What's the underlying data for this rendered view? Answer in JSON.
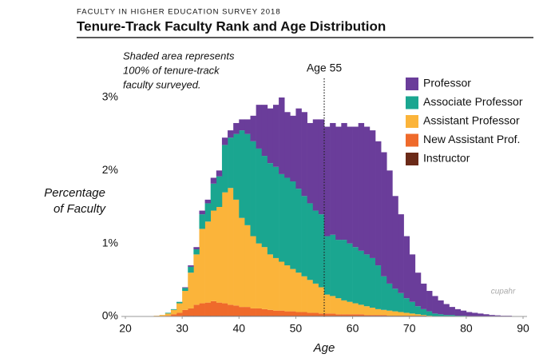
{
  "chart_data": {
    "type": "histogram",
    "header": "FACULTY IN HIGHER EDUCATION SURVEY 2018",
    "title": "Tenure-Track Faculty Rank and Age Distribution",
    "annotation": [
      "Shaded area represents",
      "100% of tenure-track",
      "faculty surveyed."
    ],
    "y_label": [
      "Percentage",
      "of Faculty"
    ],
    "x_label": "Age",
    "logo": "cupahr",
    "reference_line": {
      "x": 55,
      "label": "Age 55"
    },
    "stacked": true,
    "bins": [
      25,
      26,
      27,
      28,
      29,
      30,
      31,
      32,
      33,
      34,
      35,
      36,
      37,
      38,
      39,
      40,
      41,
      42,
      43,
      44,
      45,
      46,
      47,
      48,
      49,
      50,
      51,
      52,
      53,
      54,
      55,
      56,
      57,
      58,
      59,
      60,
      61,
      62,
      63,
      64,
      65,
      66,
      67,
      68,
      69,
      70,
      71,
      72,
      73,
      74,
      75,
      76,
      77,
      78,
      79,
      80,
      81,
      82,
      83,
      84,
      85,
      86,
      87,
      88,
      89,
      90
    ],
    "series": [
      {
        "name": "Professor",
        "color": "#6a3d9a",
        "values": [
          0,
          0,
          0,
          0,
          0,
          0.01,
          0.02,
          0.03,
          0.05,
          0.05,
          0.08,
          0.08,
          0.1,
          0.1,
          0.15,
          0.15,
          0.2,
          0.35,
          0.6,
          0.7,
          0.75,
          0.85,
          1.05,
          0.9,
          0.9,
          1.1,
          1.15,
          1.1,
          1.25,
          1.3,
          1.5,
          1.53,
          1.55,
          1.6,
          1.6,
          1.65,
          1.75,
          1.75,
          1.75,
          1.7,
          1.7,
          1.55,
          1.27,
          1.08,
          0.85,
          0.65,
          0.46,
          0.35,
          0.28,
          0.24,
          0.19,
          0.15,
          0.11,
          0.09,
          0.07,
          0.06,
          0.05,
          0.04,
          0.03,
          0.02,
          0.015,
          0.01,
          0.01,
          0.005,
          0.005
        ]
      },
      {
        "name": "Associate Professor",
        "color": "#1aa690",
        "values": [
          0,
          0,
          0.01,
          0.01,
          0.02,
          0.04,
          0.08,
          0.07,
          0.2,
          0.25,
          0.37,
          0.42,
          0.65,
          0.69,
          0.9,
          1.2,
          1.25,
          1.3,
          1.3,
          1.25,
          1.25,
          1.25,
          1.2,
          1.2,
          1.2,
          1.15,
          1.1,
          1.05,
          1.0,
          1.0,
          0.8,
          0.84,
          0.8,
          0.83,
          0.8,
          0.77,
          0.74,
          0.71,
          0.68,
          0.6,
          0.46,
          0.37,
          0.31,
          0.26,
          0.2,
          0.16,
          0.11,
          0.08,
          0.06,
          0.04,
          0.03,
          0.02,
          0.02,
          0.01,
          0.01,
          0,
          0,
          0,
          0,
          0,
          0,
          0,
          0,
          0,
          0
        ]
      },
      {
        "name": "Assistant Professor",
        "color": "#fbb43a",
        "values": [
          0.01,
          0.02,
          0.03,
          0.06,
          0.13,
          0.26,
          0.49,
          0.69,
          1.02,
          1.11,
          1.24,
          1.31,
          1.52,
          1.6,
          1.45,
          1.22,
          1.12,
          0.99,
          0.89,
          0.85,
          0.76,
          0.72,
          0.67,
          0.63,
          0.58,
          0.54,
          0.49,
          0.45,
          0.4,
          0.36,
          0.26,
          0.24,
          0.22,
          0.19,
          0.17,
          0.15,
          0.13,
          0.12,
          0.1,
          0.08,
          0.07,
          0.07,
          0.06,
          0.05,
          0.04,
          0.03,
          0.02,
          0.01,
          0.01,
          0,
          0,
          0,
          0,
          0,
          0,
          0,
          0,
          0,
          0,
          0,
          0,
          0,
          0,
          0,
          0
        ]
      },
      {
        "name": "New Assistant Prof.",
        "color": "#ef6a2b",
        "values": [
          0,
          0,
          0.01,
          0.03,
          0.05,
          0.08,
          0.1,
          0.15,
          0.17,
          0.18,
          0.2,
          0.18,
          0.17,
          0.15,
          0.14,
          0.12,
          0.12,
          0.1,
          0.1,
          0.09,
          0.08,
          0.07,
          0.07,
          0.06,
          0.06,
          0.05,
          0.05,
          0.04,
          0.04,
          0.03,
          0.03,
          0.03,
          0.02,
          0.02,
          0.02,
          0.02,
          0.02,
          0.01,
          0.01,
          0.01,
          0.01,
          0,
          0,
          0,
          0,
          0,
          0,
          0,
          0,
          0,
          0,
          0,
          0,
          0,
          0,
          0,
          0,
          0,
          0,
          0,
          0,
          0,
          0,
          0,
          0
        ]
      },
      {
        "name": "Instructor",
        "color": "#6b2a18",
        "values": [
          0,
          0,
          0,
          0,
          0,
          0.01,
          0.01,
          0.01,
          0.01,
          0.01,
          0.01,
          0.01,
          0.01,
          0.01,
          0.01,
          0.01,
          0.01,
          0.01,
          0.01,
          0.01,
          0.01,
          0.01,
          0.01,
          0.01,
          0.01,
          0.01,
          0.01,
          0.01,
          0.01,
          0.01,
          0.01,
          0.01,
          0.01,
          0.01,
          0.01,
          0.01,
          0.01,
          0.01,
          0.01,
          0.01,
          0.01,
          0.01,
          0.01,
          0.01,
          0.01,
          0.01,
          0.01,
          0.01,
          0,
          0,
          0,
          0,
          0,
          0,
          0,
          0,
          0,
          0,
          0,
          0,
          0,
          0,
          0,
          0,
          0
        ]
      }
    ],
    "xlim": [
      20,
      90
    ],
    "xticks": [
      20,
      30,
      40,
      50,
      60,
      70,
      80,
      90
    ],
    "ylim": [
      0,
      3.15
    ],
    "yticks": [
      {
        "value": 0,
        "label": "0%"
      },
      {
        "value": 1,
        "label": "1%"
      },
      {
        "value": 2,
        "label": "2%"
      },
      {
        "value": 3,
        "label": "3%"
      }
    ],
    "grid": false,
    "legend": "upper right"
  }
}
